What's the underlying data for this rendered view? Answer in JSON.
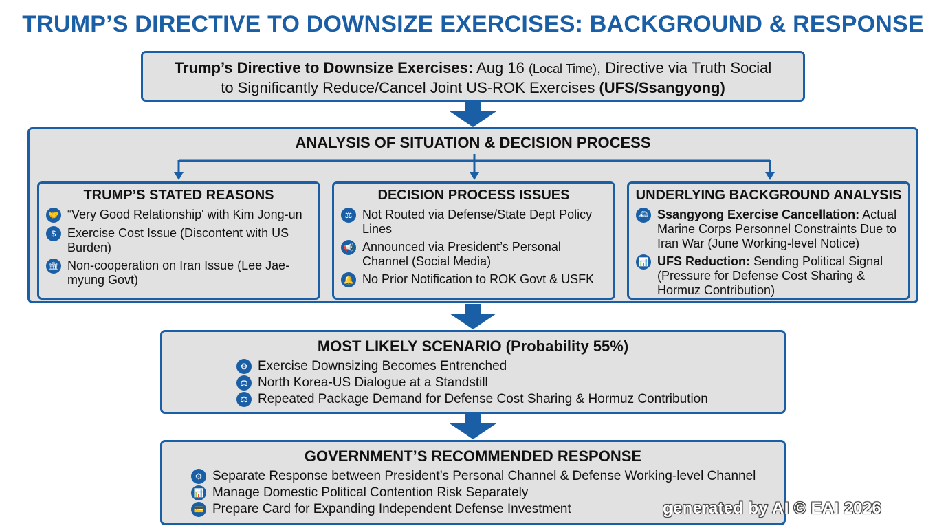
{
  "title": "TRUMP’S DIRECTIVE TO DOWNSIZE EXERCISES: BACKGROUND & RESPONSE",
  "top_box": {
    "bold1": "Trump’s Directive to Downsize Exercises:",
    "text1": " Aug 16 ",
    "small1": "(Local Time)",
    "text2": ", Directive via Truth Social",
    "text3": "to Significantly Reduce/Cancel Joint US-ROK Exercises ",
    "bold2": "(UFS/Ssangyong)"
  },
  "analysis": {
    "title": "ANALYSIS OF SITUATION & DECISION PROCESS",
    "columns": [
      {
        "title": "TRUMP’S STATED REASONS",
        "items": [
          {
            "icon": "handshake-icon",
            "glyph": "🤝",
            "bold": "",
            "text": "“Very Good Relationship' with Kim Jong-un"
          },
          {
            "icon": "money-bag-icon",
            "glyph": "$",
            "bold": "",
            "text": "Exercise Cost Issue (Discontent with US Burden)"
          },
          {
            "icon": "government-building-icon",
            "glyph": "🏛",
            "bold": "",
            "text": "Non-cooperation on Iran Issue (Lee Jae-myung Govt)"
          }
        ]
      },
      {
        "title": "DECISION PROCESS ISSUES",
        "items": [
          {
            "icon": "scales-icon",
            "glyph": "⚖",
            "bold": "",
            "text": "Not Routed via Defense/State Dept Policy Lines"
          },
          {
            "icon": "megaphone-icon",
            "glyph": "📢",
            "bold": "",
            "text": "Announced via President’s Personal Channel (Social Media)"
          },
          {
            "icon": "bell-icon",
            "glyph": "🔔",
            "bold": "",
            "text": "No Prior Notification to ROK Govt & USFK"
          }
        ]
      },
      {
        "title": "UNDERLYING BACKGROUND ANALYSIS",
        "items": [
          {
            "icon": "ship-icon",
            "glyph": "⛴",
            "bold": "Ssangyong Exercise Cancellation:",
            "text": " Actual Marine Corps Personnel Constraints Due to Iran War (June Working-level Notice)"
          },
          {
            "icon": "bar-chart-icon",
            "glyph": "📊",
            "bold": "UFS Reduction:",
            "text": " Sending Political Signal (Pressure for Defense Cost Sharing & Hormuz Contribution)"
          }
        ]
      }
    ]
  },
  "scenario": {
    "title": "MOST LIKELY SCENARIO (Probability 55%)",
    "items": [
      {
        "icon": "org-chart-icon",
        "glyph": "⚙",
        "text": "Exercise Downsizing Becomes Entrenched"
      },
      {
        "icon": "scales-icon",
        "glyph": "⚖",
        "text": "North Korea-US Dialogue at a Standstill"
      },
      {
        "icon": "scales-icon",
        "glyph": "⚖",
        "text": "Repeated Package Demand for Defense Cost Sharing & Hormuz Contribution"
      }
    ]
  },
  "government": {
    "title": "GOVERNMENT’S RECOMMENDED RESPONSE",
    "items": [
      {
        "icon": "org-chart-icon",
        "glyph": "⚙",
        "text": "Separate Response between President’s Personal Channel & Defense Working-level Channel"
      },
      {
        "icon": "bar-chart-icon",
        "glyph": "📊",
        "text": "Manage Domestic Political Contention Risk Separately"
      },
      {
        "icon": "card-icon",
        "glyph": "💳",
        "text": "Prepare Card for Expanding Independent Defense Investment"
      }
    ]
  },
  "watermark": "generated by AI © EAI 2026",
  "colors": {
    "accent": "#1a5fa6",
    "box_fill": "#e1e1e1"
  }
}
